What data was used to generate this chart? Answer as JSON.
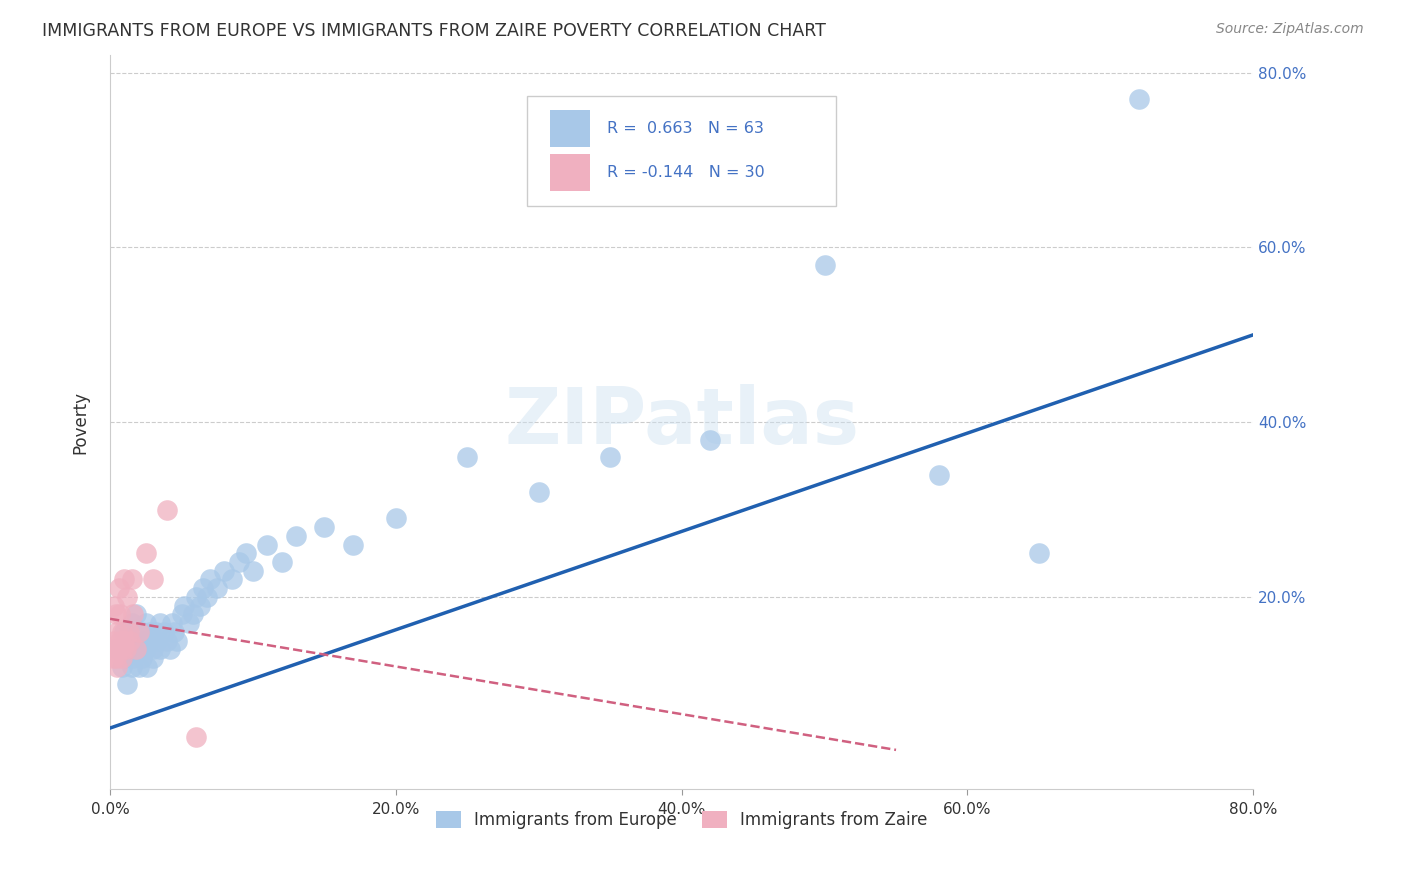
{
  "title": "IMMIGRANTS FROM EUROPE VS IMMIGRANTS FROM ZAIRE POVERTY CORRELATION CHART",
  "source": "Source: ZipAtlas.com",
  "ylabel": "Poverty",
  "x_tick_labels": [
    "0.0%",
    "20.0%",
    "40.0%",
    "60.0%",
    "80.0%"
  ],
  "y_tick_labels_right": [
    "20.0%",
    "40.0%",
    "60.0%",
    "80.0%"
  ],
  "xlim": [
    0.0,
    0.8
  ],
  "ylim": [
    -0.02,
    0.82
  ],
  "legend_label1": "Immigrants from Europe",
  "legend_label2": "Immigrants from Zaire",
  "r1": 0.663,
  "n1": 63,
  "r2": -0.144,
  "n2": 30,
  "blue_color": "#a8c8e8",
  "pink_color": "#f0b0c0",
  "blue_line_color": "#2060b0",
  "pink_line_color": "#d06080",
  "watermark": "ZIPatlas",
  "blue_scatter_x": [
    0.005,
    0.008,
    0.01,
    0.01,
    0.012,
    0.012,
    0.013,
    0.015,
    0.015,
    0.016,
    0.018,
    0.018,
    0.02,
    0.02,
    0.022,
    0.022,
    0.023,
    0.025,
    0.025,
    0.026,
    0.028,
    0.028,
    0.03,
    0.03,
    0.032,
    0.033,
    0.035,
    0.035,
    0.038,
    0.04,
    0.042,
    0.043,
    0.045,
    0.047,
    0.05,
    0.052,
    0.055,
    0.058,
    0.06,
    0.063,
    0.065,
    0.068,
    0.07,
    0.075,
    0.08,
    0.085,
    0.09,
    0.095,
    0.1,
    0.11,
    0.12,
    0.13,
    0.15,
    0.17,
    0.2,
    0.25,
    0.3,
    0.35,
    0.42,
    0.5,
    0.58,
    0.65,
    0.72
  ],
  "blue_scatter_y": [
    0.14,
    0.12,
    0.16,
    0.13,
    0.1,
    0.15,
    0.14,
    0.12,
    0.17,
    0.13,
    0.15,
    0.18,
    0.14,
    0.12,
    0.16,
    0.13,
    0.15,
    0.14,
    0.17,
    0.12,
    0.15,
    0.16,
    0.14,
    0.13,
    0.16,
    0.15,
    0.17,
    0.14,
    0.16,
    0.15,
    0.14,
    0.17,
    0.16,
    0.15,
    0.18,
    0.19,
    0.17,
    0.18,
    0.2,
    0.19,
    0.21,
    0.2,
    0.22,
    0.21,
    0.23,
    0.22,
    0.24,
    0.25,
    0.23,
    0.26,
    0.24,
    0.27,
    0.28,
    0.26,
    0.29,
    0.36,
    0.32,
    0.36,
    0.38,
    0.58,
    0.34,
    0.25,
    0.77
  ],
  "pink_scatter_x": [
    0.001,
    0.002,
    0.003,
    0.003,
    0.004,
    0.004,
    0.005,
    0.005,
    0.005,
    0.006,
    0.006,
    0.007,
    0.007,
    0.008,
    0.008,
    0.009,
    0.01,
    0.01,
    0.011,
    0.012,
    0.013,
    0.014,
    0.015,
    0.016,
    0.018,
    0.02,
    0.025,
    0.03,
    0.04,
    0.06
  ],
  "pink_scatter_y": [
    0.14,
    0.13,
    0.15,
    0.19,
    0.13,
    0.18,
    0.14,
    0.16,
    0.12,
    0.21,
    0.14,
    0.15,
    0.18,
    0.13,
    0.16,
    0.14,
    0.22,
    0.15,
    0.14,
    0.2,
    0.16,
    0.15,
    0.22,
    0.18,
    0.14,
    0.16,
    0.25,
    0.22,
    0.3,
    0.04
  ],
  "blue_line_x": [
    0.0,
    0.8
  ],
  "blue_line_y": [
    0.05,
    0.5
  ],
  "pink_line_x": [
    0.0,
    0.55
  ],
  "pink_line_y": [
    0.175,
    0.025
  ]
}
